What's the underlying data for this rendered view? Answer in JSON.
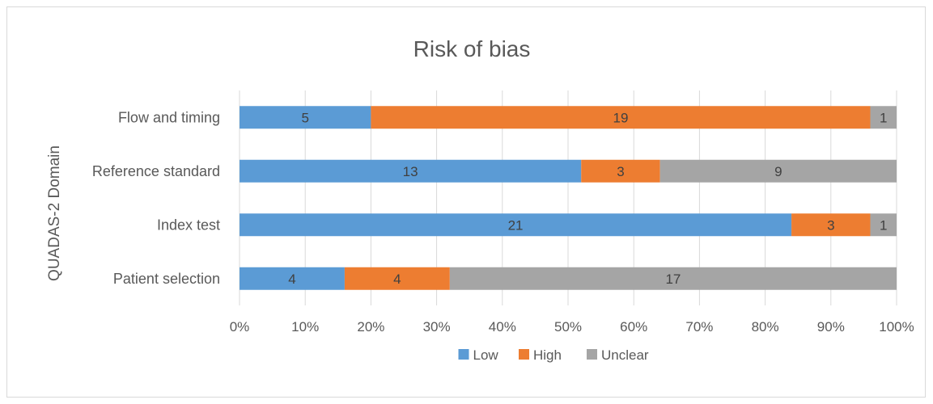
{
  "chart_data": {
    "type": "bar",
    "orientation": "horizontal",
    "stacked": "percent",
    "title": "Risk of bias",
    "ylabel": "QUADAS-2 Domain",
    "xlabel": "",
    "categories": [
      "Patient selection",
      "Index test",
      "Reference standard",
      "Flow and timing"
    ],
    "series": [
      {
        "name": "Low",
        "values": [
          4,
          21,
          13,
          5
        ],
        "color": "#5b9bd5"
      },
      {
        "name": "High",
        "values": [
          4,
          3,
          3,
          19
        ],
        "color": "#ed7d31"
      },
      {
        "name": "Unclear",
        "values": [
          17,
          1,
          9,
          1
        ],
        "color": "#a5a5a5"
      }
    ],
    "xlim": [
      0,
      100
    ],
    "xticks": [
      "0%",
      "10%",
      "20%",
      "30%",
      "40%",
      "50%",
      "60%",
      "70%",
      "80%",
      "90%",
      "100%"
    ],
    "grid": true,
    "legend_position": "bottom"
  }
}
